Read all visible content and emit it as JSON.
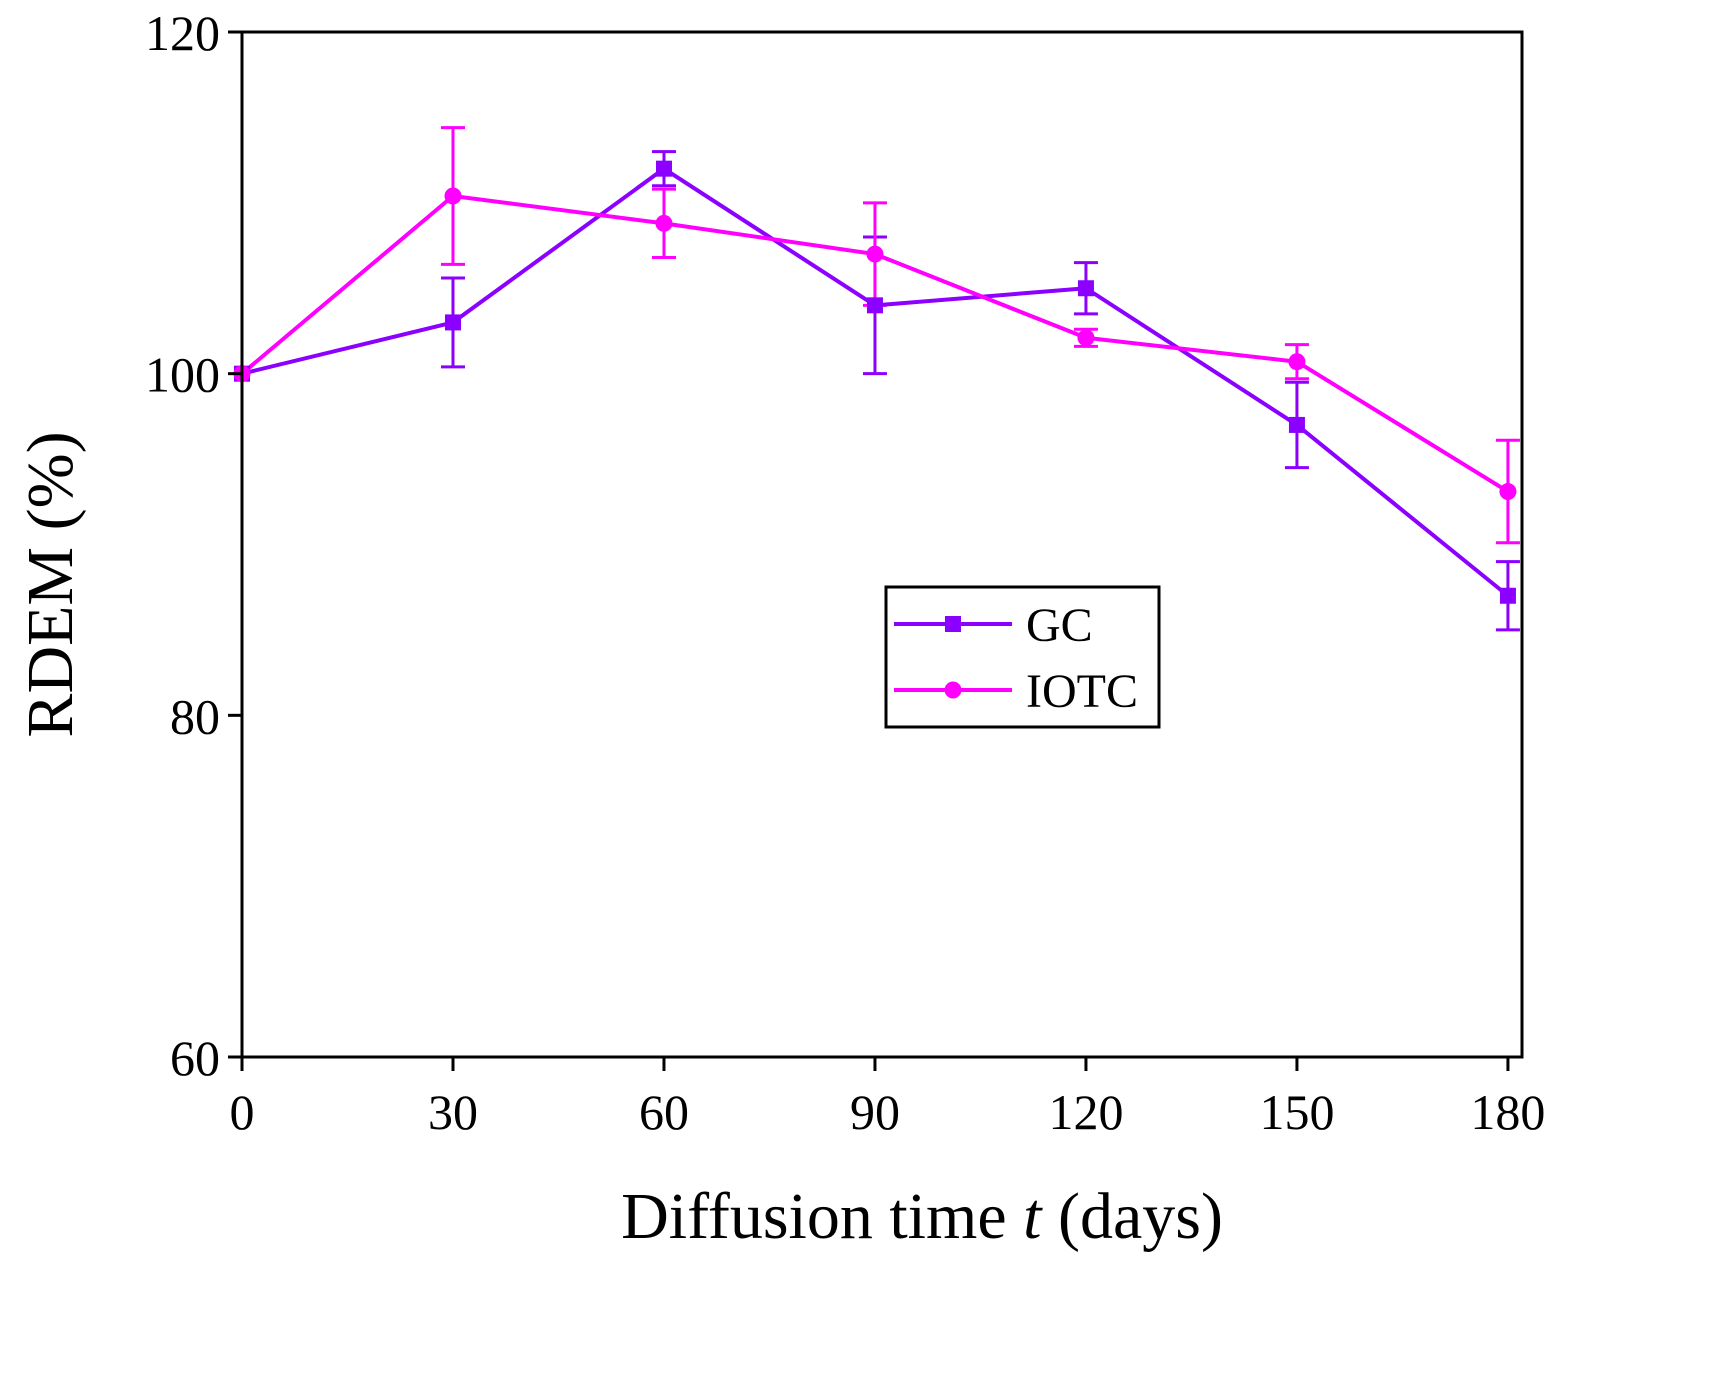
{
  "chart_data": {
    "type": "line",
    "title": "",
    "xlabel": {
      "prefix": "Diffusion time ",
      "italic": "t",
      "suffix": " (days)"
    },
    "ylabel": "RDEM (%)",
    "xlim": [
      0,
      182
    ],
    "ylim": [
      60,
      120
    ],
    "xticks": [
      0,
      30,
      60,
      90,
      120,
      150,
      180
    ],
    "yticks": [
      60,
      80,
      100,
      120
    ],
    "grid": false,
    "legend_position": "center-right",
    "series": [
      {
        "name": "GC",
        "color": "#8B00FF",
        "marker": "square",
        "x": [
          0,
          30,
          60,
          90,
          120,
          150,
          180
        ],
        "y": [
          100,
          103,
          112,
          104,
          105,
          97,
          87
        ],
        "err": [
          0,
          2.6,
          1.0,
          4.0,
          1.5,
          2.5,
          2.0
        ]
      },
      {
        "name": "IOTC",
        "color": "#FF00FF",
        "marker": "circle",
        "x": [
          0,
          30,
          60,
          90,
          120,
          150,
          180
        ],
        "y": [
          100,
          110.4,
          108.8,
          107,
          102.1,
          100.7,
          93.1
        ],
        "err": [
          0,
          4.0,
          2.0,
          3.0,
          0.5,
          1.0,
          3.0
        ]
      }
    ]
  }
}
